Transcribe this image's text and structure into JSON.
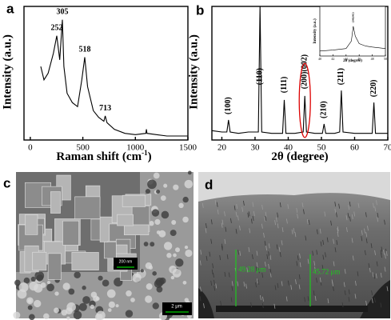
{
  "chart_data": [
    {
      "type": "line",
      "panel_label": "a",
      "xlabel": "Raman shift (cm",
      "xlabel_sup": "-1",
      "xlabel_end": ")",
      "ylabel": "Intensity (a.u.)",
      "x": [
        100,
        130,
        170,
        220,
        252,
        280,
        305,
        320,
        350,
        400,
        450,
        490,
        518,
        545,
        600,
        650,
        700,
        713,
        730,
        800,
        900,
        1000,
        1100,
        1105,
        1110,
        1200,
        1300,
        1400,
        1500
      ],
      "values": [
        55,
        45,
        50,
        65,
        78,
        60,
        90,
        55,
        35,
        28,
        25,
        45,
        62,
        40,
        22,
        17,
        14,
        18,
        13,
        8,
        5,
        4,
        5,
        8,
        5,
        4,
        3,
        3,
        3
      ],
      "color": "#000000",
      "xlim": [
        -60,
        1500
      ],
      "ylim": [
        0,
        100
      ],
      "xticks": [
        0,
        500,
        1000,
        1500
      ],
      "annotations": [
        {
          "x": 252,
          "y": 80,
          "text": "252"
        },
        {
          "x": 305,
          "y": 92,
          "text": "305"
        },
        {
          "x": 518,
          "y": 64,
          "text": "518"
        },
        {
          "x": 713,
          "y": 20,
          "text": "713"
        }
      ]
    },
    {
      "type": "line",
      "panel_label": "b",
      "xlabel": "2θ (degree)",
      "ylabel": "Intensity (a.u.)",
      "x": [
        17,
        20,
        21.5,
        22,
        22.5,
        25,
        28,
        31,
        31.5,
        32,
        35,
        38.3,
        38.8,
        39.3,
        42,
        44.5,
        45,
        45.5,
        48,
        50.3,
        50.8,
        51.3,
        54,
        55.5,
        56,
        56.5,
        60,
        65.3,
        65.8,
        66.3,
        70
      ],
      "values": [
        7,
        6,
        6,
        15,
        6,
        5,
        6,
        6,
        100,
        6,
        5,
        5,
        30,
        5,
        5,
        6,
        33,
        6,
        5,
        5,
        12,
        5,
        5,
        6,
        37,
        6,
        5,
        5,
        28,
        5,
        5
      ],
      "color": "#000000",
      "xlim": [
        17,
        70
      ],
      "ylim": [
        0,
        100
      ],
      "xticks": [
        20,
        30,
        40,
        50,
        60,
        70
      ],
      "annotations": [
        {
          "x": 22,
          "y": 18,
          "text": "(100)"
        },
        {
          "x": 31.5,
          "y": 40,
          "text": "(110)"
        },
        {
          "x": 38.8,
          "y": 34,
          "text": "(111)"
        },
        {
          "x": 45,
          "y": 37,
          "text": "(200)(002)",
          "highlight": true
        },
        {
          "x": 50.8,
          "y": 15,
          "text": "(210)"
        },
        {
          "x": 56,
          "y": 40,
          "text": "(211)"
        },
        {
          "x": 65.8,
          "y": 31,
          "text": "(220)"
        }
      ]
    },
    {
      "type": "line",
      "inset": true,
      "xlabel": "2θ (degree)",
      "ylabel": "Intensity (a.u.)",
      "x": [
        40,
        42,
        44,
        44.8,
        45.1,
        45.4,
        46,
        47,
        48,
        50
      ],
      "values": [
        10,
        12,
        15,
        30,
        60,
        40,
        25,
        20,
        18,
        15
      ],
      "color": "#000000",
      "xlim": [
        40,
        50
      ],
      "ylim": [
        0,
        100
      ],
      "xticks": [
        40,
        42,
        44,
        46,
        48,
        50
      ],
      "annotations": [
        {
          "x": 45.1,
          "y": 64,
          "text": "(200)(002)"
        }
      ]
    }
  ],
  "images": [
    {
      "label": "c",
      "scale_bars": [
        "200 nm",
        "2 μm"
      ]
    },
    {
      "label": "d",
      "measurements": [
        "49.28 μm",
        "45.72 μm"
      ]
    }
  ]
}
